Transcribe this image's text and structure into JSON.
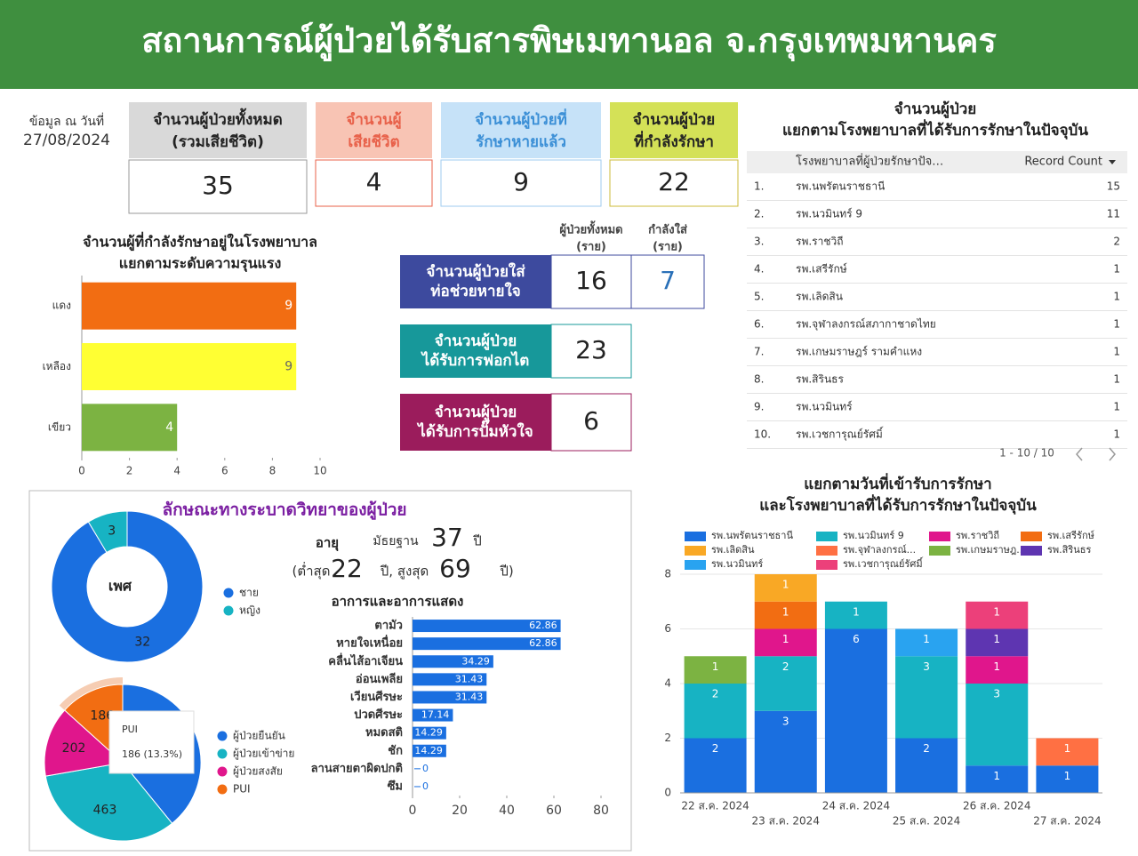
{
  "header": {
    "title": "สถานการณ์ผู้ป่วยได้รับสารพิษเมทานอล จ.กรุงเทพมหานคร"
  },
  "as_of": {
    "label": "ข้อมูล ณ วันที่",
    "date": "27/08/2024"
  },
  "kpis": [
    {
      "label": [
        "จำนวนผู้ป่วยทั้งหมด",
        "(รวมเสียชีวิต)"
      ],
      "value": 35,
      "color": "#d9d9d9"
    },
    {
      "label": [
        "จำนวนผู้",
        "เสียชีวิต"
      ],
      "value": 4,
      "color": "#f8c4b4"
    },
    {
      "label": [
        "จำนวนผู้ป่วยที่",
        "รักษาหายแล้ว"
      ],
      "value": 9,
      "color": "#c6e2f8"
    },
    {
      "label": [
        "จำนวนผู้ป่วย",
        "ที่กำลังรักษา"
      ],
      "value": 22,
      "color": "#d4e157"
    }
  ],
  "procedures": {
    "columns": [
      [
        "ผู้ป่วยทั้งหมด",
        "(ราย)"
      ],
      [
        "กำลังใส่",
        "(ราย)"
      ]
    ],
    "rows": [
      {
        "label": [
          "จำนวนผู้ป่วยใส่",
          "ท่อช่วยหายใจ"
        ],
        "color": "#3d4a9e",
        "values": [
          16,
          7
        ]
      },
      {
        "label": [
          "จำนวนผู้ป่วย",
          "ได้รับการฟอกไต"
        ],
        "color": "#17989a",
        "values": [
          23
        ]
      },
      {
        "label": [
          "จำนวนผู้ป่วย",
          "ได้รับการปั๊มหัวใจ"
        ],
        "color": "#9b1c5c",
        "values": [
          6
        ]
      }
    ]
  },
  "hospital_table": {
    "title": [
      "จำนวนผู้ป่วย",
      "แยกตามโรงพยาบาลที่ได้รับการรักษาในปัจจุบัน"
    ],
    "columns": [
      "โรงพยาบาลที่ผู้ป่วยรักษาปัจ…",
      "Record Count"
    ],
    "rows": [
      [
        "1.",
        "รพ.นพรัตนราชธานี",
        15
      ],
      [
        "2.",
        "รพ.นวมินทร์ 9",
        11
      ],
      [
        "3.",
        "รพ.ราชวิถี",
        2
      ],
      [
        "4.",
        "รพ.เสรีรักษ์",
        1
      ],
      [
        "5.",
        "รพ.เลิดสิน",
        1
      ],
      [
        "6.",
        "รพ.จุฬาลงกรณ์สภากาชาดไทย",
        1
      ],
      [
        "7.",
        "รพ.เกษมราษฎร์ รามคำแหง",
        1
      ],
      [
        "8.",
        "รพ.สิรินธร",
        1
      ],
      [
        "9.",
        "รพ.นวมินทร์",
        1
      ],
      [
        "10.",
        "รพ.เวชการุณย์รัศมิ์",
        1
      ]
    ],
    "pagination": "1 - 10 / 10"
  },
  "epi": {
    "title": "ลักษณะทางระบาดวิทยาของผู้ป่วย",
    "age": {
      "label": "อายุ",
      "median_label": "มัธยฐาน",
      "median": 37,
      "unit": "ปี",
      "min_label": "(ต่ำสุด",
      "min": 22,
      "max_label": "ปี, สูงสุด",
      "max": 69,
      "close": "ปี)"
    }
  },
  "chart_data": [
    {
      "type": "hbar",
      "title": [
        "จำนวนผู้ที่กำลังรักษาอยู่ในโรงพยาบาล",
        "แยกตามระดับความรุนแรง"
      ],
      "categories": [
        "แดง",
        "เหลือง",
        "เขียว"
      ],
      "values": [
        9,
        9,
        4
      ],
      "colors": [
        "#f26d12",
        "#ffff33",
        "#7cb342"
      ],
      "xlim": [
        0,
        10
      ],
      "xticks": [
        0,
        2,
        4,
        6,
        8,
        10
      ]
    },
    {
      "type": "donut",
      "center_label": "เพศ",
      "categories": [
        "ชาย",
        "หญิง"
      ],
      "values": [
        32,
        3
      ],
      "colors": [
        "#1a6fe0",
        "#17b3c3"
      ]
    },
    {
      "type": "pie",
      "categories": [
        "ผู้ป่วยยืนยัน",
        "ผู้ป่วยเข้าข่าย",
        "ผู้ป่วยสงสัย",
        "PUI"
      ],
      "values": [
        547,
        463,
        202,
        186
      ],
      "colors": [
        "#1a6fe0",
        "#17b3c3",
        "#e0168c",
        "#f26d12"
      ],
      "tooltip": "186 (13.3%)"
    },
    {
      "type": "hbar",
      "title": "อาการและอาการแสดง",
      "categories": [
        "ตามัว",
        "หายใจเหนื่อย",
        "คลื่นไส้อาเจียน",
        "อ่อนเพลีย",
        "เวียนศีรษะ",
        "ปวดศีรษะ",
        "หมดสติ",
        "ชัก",
        "ลานสายตาผิดปกติ",
        "ซึม"
      ],
      "values": [
        62.86,
        62.86,
        34.29,
        31.43,
        31.43,
        17.14,
        14.29,
        14.29,
        0,
        0
      ],
      "color": "#1a6fe0",
      "xlim": [
        0,
        80
      ],
      "xticks": [
        0,
        20,
        40,
        60,
        80
      ]
    },
    {
      "type": "stacked_bar",
      "title": [
        "แยกตามวันที่เข้ารับการรักษา",
        "และโรงพยาบาลที่ได้รับการรักษาในปัจจุบัน"
      ],
      "categories": [
        "22 ส.ค. 2024",
        "23 ส.ค. 2024",
        "24 ส.ค. 2024",
        "25 ส.ค. 2024",
        "26 ส.ค. 2024",
        "27 ส.ค. 2024"
      ],
      "series": [
        {
          "name": "รพ.นพรัตนราชธานี",
          "color": "#1a6fe0",
          "values": [
            2,
            3,
            6,
            2,
            1,
            1
          ]
        },
        {
          "name": "รพ.นวมินทร์ 9",
          "color": "#17b3c3",
          "values": [
            2,
            2,
            1,
            3,
            3,
            0
          ]
        },
        {
          "name": "รพ.ราชวิถี",
          "color": "#e0168c",
          "values": [
            0,
            1,
            0,
            0,
            1,
            0
          ]
        },
        {
          "name": "รพ.เสรีรักษ์",
          "color": "#f26d12",
          "values": [
            0,
            1,
            0,
            0,
            0,
            0
          ]
        },
        {
          "name": "รพ.เลิดสิน",
          "color": "#f9a825",
          "values": [
            0,
            1,
            0,
            0,
            0,
            0
          ]
        },
        {
          "name": "รพ.จุฬาลงกรณ์...",
          "color": "#ff7043",
          "values": [
            0,
            0,
            0,
            0,
            0,
            1
          ]
        },
        {
          "name": "รพ.เกษมราษฎ...",
          "color": "#7cb342",
          "values": [
            1,
            0,
            0,
            0,
            0,
            0
          ]
        },
        {
          "name": "รพ.สิรินธร",
          "color": "#5e35b1",
          "values": [
            0,
            0,
            0,
            0,
            1,
            0
          ]
        },
        {
          "name": "รพ.นวมินทร์",
          "color": "#29a3f0",
          "values": [
            0,
            0,
            0,
            1,
            0,
            0
          ]
        },
        {
          "name": "รพ.เวชการุณย์รัศมิ์",
          "color": "#ec407a",
          "values": [
            0,
            0,
            0,
            0,
            1,
            0
          ]
        }
      ],
      "ylim": [
        0,
        8
      ],
      "yticks": [
        0,
        2,
        4,
        6,
        8
      ],
      "grid": true
    }
  ]
}
